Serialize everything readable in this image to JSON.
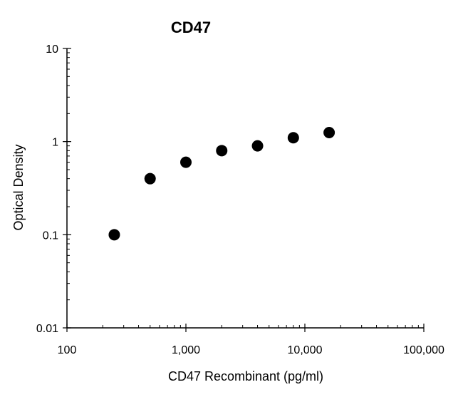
{
  "chart_data": {
    "type": "scatter",
    "title": "CD47",
    "xlabel": "CD47 Recombinant (pg/ml)",
    "ylabel": "Optical Density",
    "x_scale": "log",
    "y_scale": "log",
    "xlim": [
      100,
      100000
    ],
    "ylim": [
      0.01,
      10
    ],
    "x_ticks": [
      100,
      1000,
      10000,
      100000
    ],
    "x_tick_labels": [
      "100",
      "1,000",
      "10,000",
      "100,000"
    ],
    "y_ticks": [
      0.01,
      0.1,
      1,
      10
    ],
    "y_tick_labels": [
      "0.01",
      "0.1",
      "1",
      "10"
    ],
    "grid": false,
    "point_color": "#000000",
    "series": [
      {
        "x": [
          250,
          500,
          1000,
          2000,
          4000,
          8000,
          16000
        ],
        "y": [
          0.1,
          0.4,
          0.6,
          0.8,
          0.9,
          1.1,
          1.25
        ]
      }
    ]
  }
}
